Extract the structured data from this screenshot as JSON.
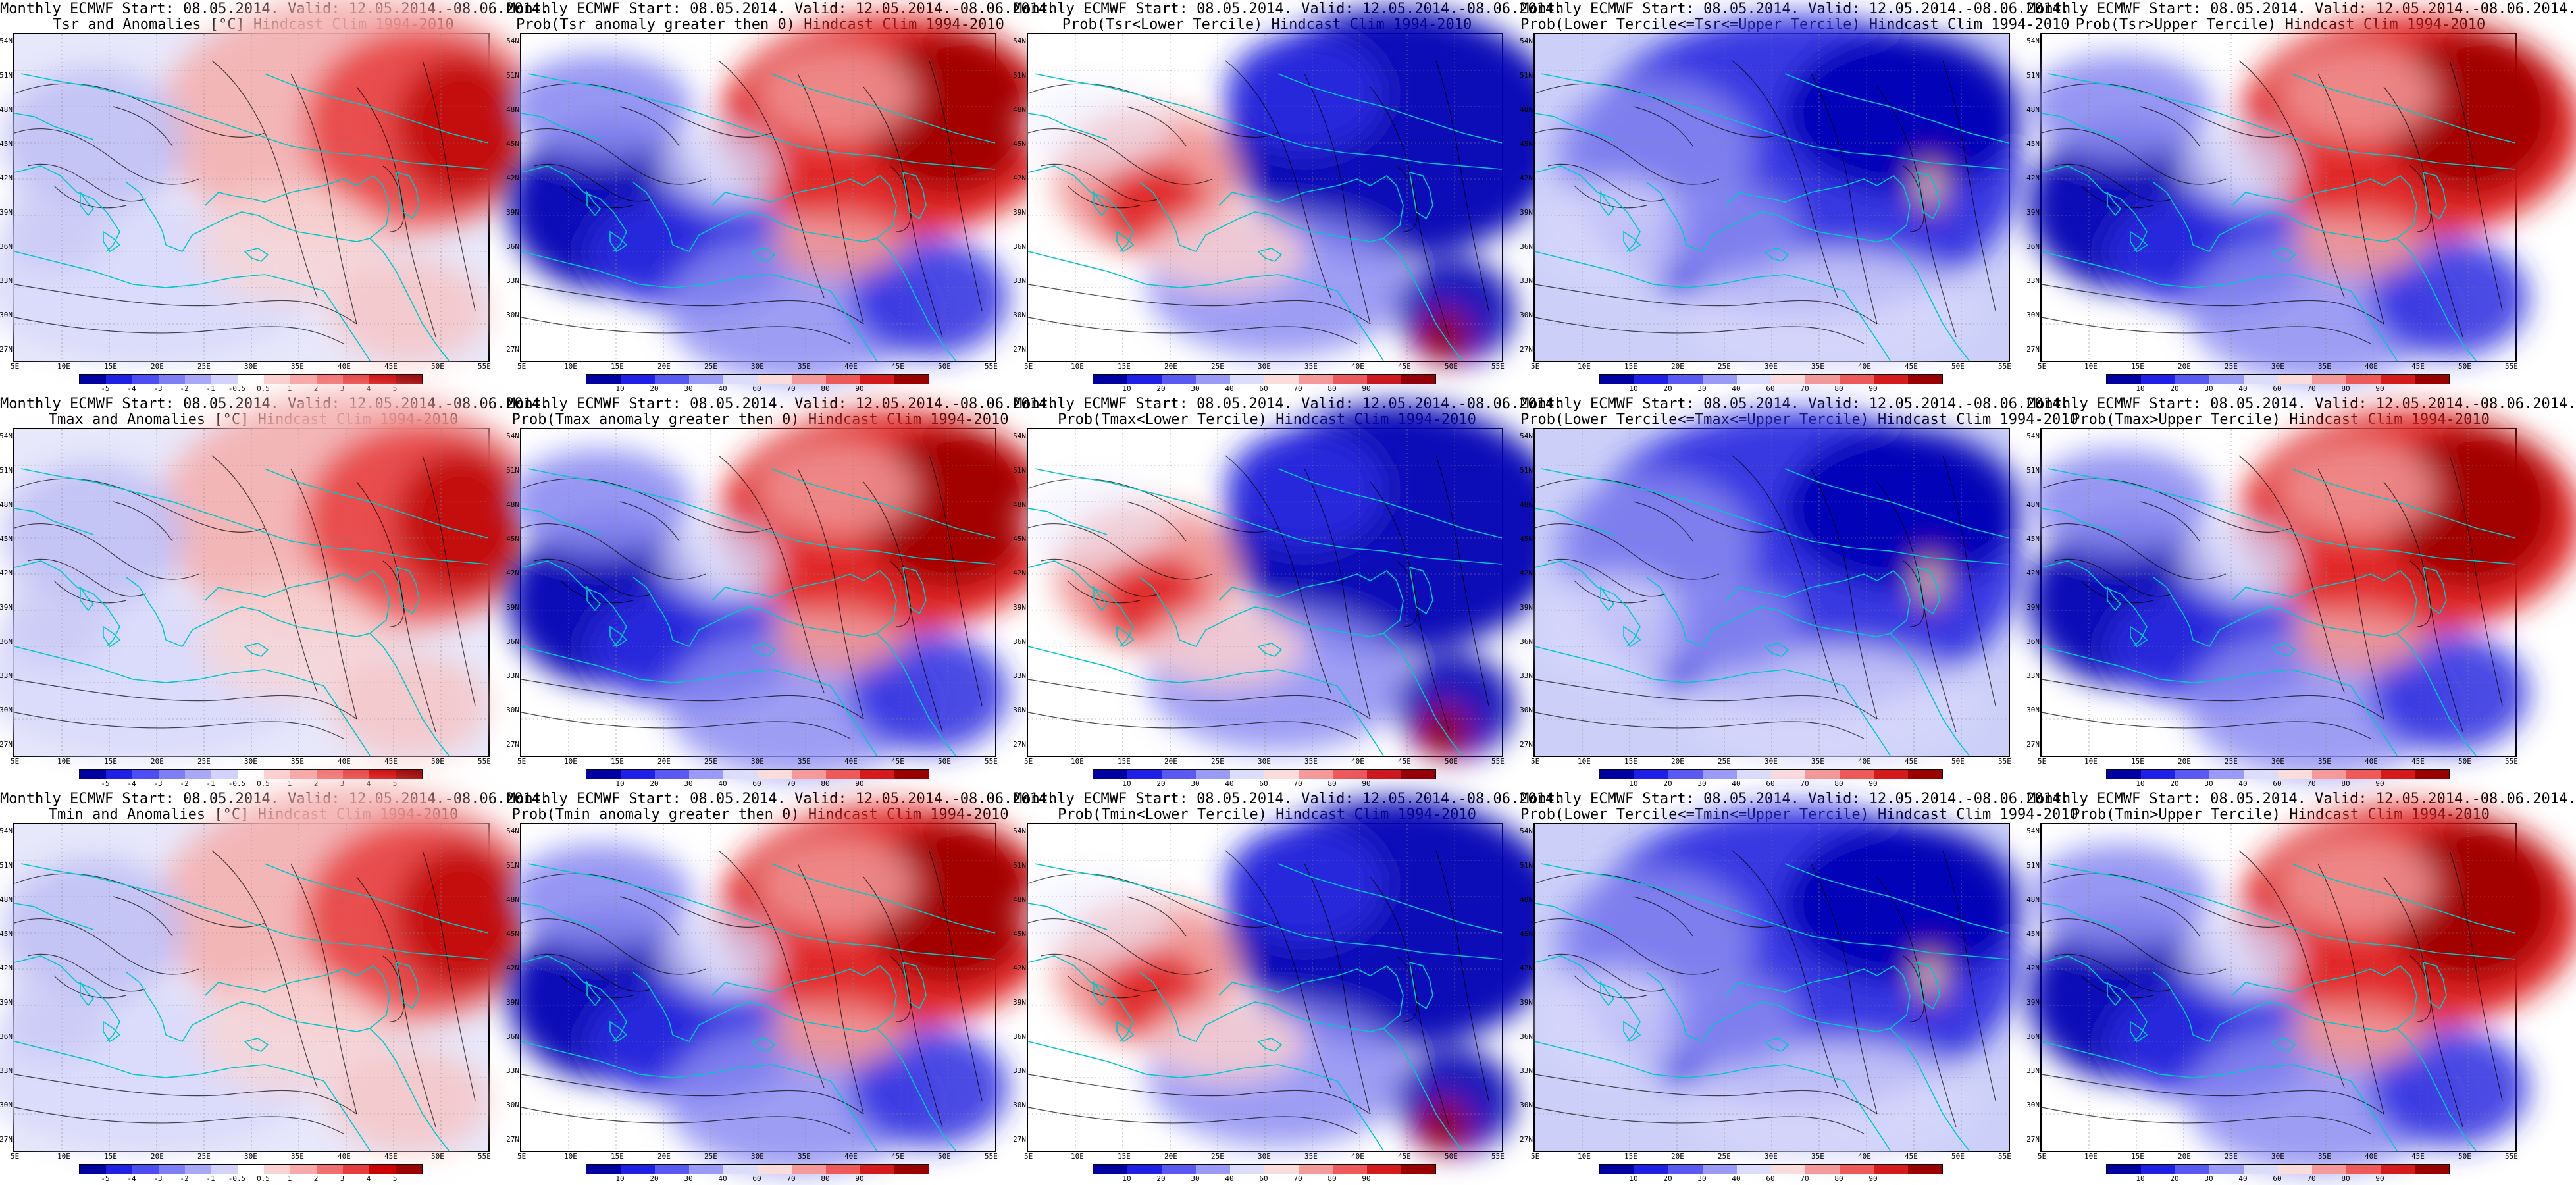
{
  "panels": [
    {
      "row": 0,
      "col": 0,
      "line1": "Monthly ECMWF Start: 08.05.2014. Valid: 12.05.2014.-08.06.2014.",
      "line2": "Tsr and Anomalies [°C] Hindcast Clim 1994-2010",
      "kind": "anom"
    },
    {
      "row": 0,
      "col": 1,
      "line1": "Monthly ECMWF Start: 08.05.2014. Valid: 12.05.2014.-08.06.2014.",
      "line2": "Prob(Tsr anomaly greater then 0) Hindcast Clim 1994-2010",
      "kind": "prob"
    },
    {
      "row": 0,
      "col": 2,
      "line1": "Monthly ECMWF Start: 08.05.2014. Valid: 12.05.2014.-08.06.2014.",
      "line2": "Prob(Tsr<Lower Tercile) Hindcast Clim 1994-2010",
      "kind": "lower"
    },
    {
      "row": 0,
      "col": 3,
      "line1": "Monthly ECMWF Start: 08.05.2014. Valid: 12.05.2014.-08.06.2014.",
      "line2": "Prob(Lower Tercile<=Tsr<=Upper Tercile) Hindcast Clim 1994-2010",
      "kind": "middle"
    },
    {
      "row": 0,
      "col": 4,
      "line1": "Monthly ECMWF Start: 08.05.2014. Valid: 12.05.2014.-08.06.2014.",
      "line2": "Prob(Tsr>Upper Tercile) Hindcast Clim 1994-2010",
      "kind": "upper"
    },
    {
      "row": 1,
      "col": 0,
      "line1": "Monthly ECMWF Start: 08.05.2014. Valid: 12.05.2014.-08.06.2014.",
      "line2": "Tmax and Anomalies [°C] Hindcast Clim 1994-2010",
      "kind": "anom"
    },
    {
      "row": 1,
      "col": 1,
      "line1": "Monthly ECMWF Start: 08.05.2014. Valid: 12.05.2014.-08.06.2014.",
      "line2": "Prob(Tmax anomaly greater then 0) Hindcast Clim 1994-2010",
      "kind": "prob"
    },
    {
      "row": 1,
      "col": 2,
      "line1": "Monthly ECMWF Start: 08.05.2014. Valid: 12.05.2014.-08.06.2014.",
      "line2": "Prob(Tmax<Lower Tercile) Hindcast Clim 1994-2010",
      "kind": "lower"
    },
    {
      "row": 1,
      "col": 3,
      "line1": "Monthly ECMWF Start: 08.05.2014. Valid: 12.05.2014.-08.06.2014.",
      "line2": "Prob(Lower Tercile<=Tmax<=Upper Tercile) Hindcast Clim 1994-2010",
      "kind": "middle"
    },
    {
      "row": 1,
      "col": 4,
      "line1": "Monthly ECMWF Start: 08.05.2014. Valid: 12.05.2014.-08.06.2014.",
      "line2": "Prob(Tmax>Upper Tercile) Hindcast Clim 1994-2010",
      "kind": "upper"
    },
    {
      "row": 2,
      "col": 0,
      "line1": "Monthly ECMWF Start: 08.05.2014. Valid: 12.05.2014.-08.06.2014.",
      "line2": "Tmin and Anomalies [°C] Hindcast Clim 1994-2010",
      "kind": "anom"
    },
    {
      "row": 2,
      "col": 1,
      "line1": "Monthly ECMWF Start: 08.05.2014. Valid: 12.05.2014.-08.06.2014.",
      "line2": "Prob(Tmin anomaly greater then 0) Hindcast Clim 1994-2010",
      "kind": "prob"
    },
    {
      "row": 2,
      "col": 2,
      "line1": "Monthly ECMWF Start: 08.05.2014. Valid: 12.05.2014.-08.06.2014.",
      "line2": "Prob(Tmin<Lower Tercile) Hindcast Clim 1994-2010",
      "kind": "lower"
    },
    {
      "row": 2,
      "col": 3,
      "line1": "Monthly ECMWF Start: 08.05.2014. Valid: 12.05.2014.-08.06.2014.",
      "line2": "Prob(Lower Tercile<=Tmin<=Upper Tercile) Hindcast Clim 1994-2010",
      "kind": "middle"
    },
    {
      "row": 2,
      "col": 4,
      "line1": "Monthly ECMWF Start: 08.05.2014. Valid: 12.05.2014.-08.06.2014.",
      "line2": "Prob(Tmin>Upper Tercile) Hindcast Clim 1994-2010",
      "kind": "upper"
    }
  ],
  "lat_labels": [
    "54N",
    "51N",
    "48N",
    "45N",
    "42N",
    "39N",
    "36N",
    "33N",
    "30N",
    "27N"
  ],
  "lon_labels": [
    "5E",
    "10E",
    "15E",
    "20E",
    "25E",
    "30E",
    "35E",
    "40E",
    "45E",
    "50E",
    "55E"
  ],
  "colorbars": {
    "anom": {
      "ticks": [
        "-5",
        "-4",
        "-3",
        "-2",
        "-1",
        "-0.5",
        "0.5",
        "1",
        "2",
        "3",
        "4",
        "5"
      ],
      "colors": [
        "#0000a0",
        "#1f1fe6",
        "#4d4df2",
        "#7f7ff5",
        "#a8a8f7",
        "#d2d2fb",
        "#ffffff",
        "#fbd2d2",
        "#f7a8a8",
        "#f07070",
        "#e63c3c",
        "#cc0000",
        "#990000"
      ]
    },
    "prob": {
      "ticks": [
        "10",
        "20",
        "30",
        "40",
        "60",
        "70",
        "80",
        "90"
      ],
      "colors": [
        "#0000a0",
        "#1f1fe6",
        "#5a5af2",
        "#9a9af7",
        "#dcdcfb",
        "#fbdcdc",
        "#f59a9a",
        "#ee5a5a",
        "#d41a1a",
        "#990000"
      ]
    }
  },
  "colors": {
    "coast": "#00c8c8",
    "contour": "#000000",
    "warm": "#c80000",
    "cold": "#0000b4"
  }
}
